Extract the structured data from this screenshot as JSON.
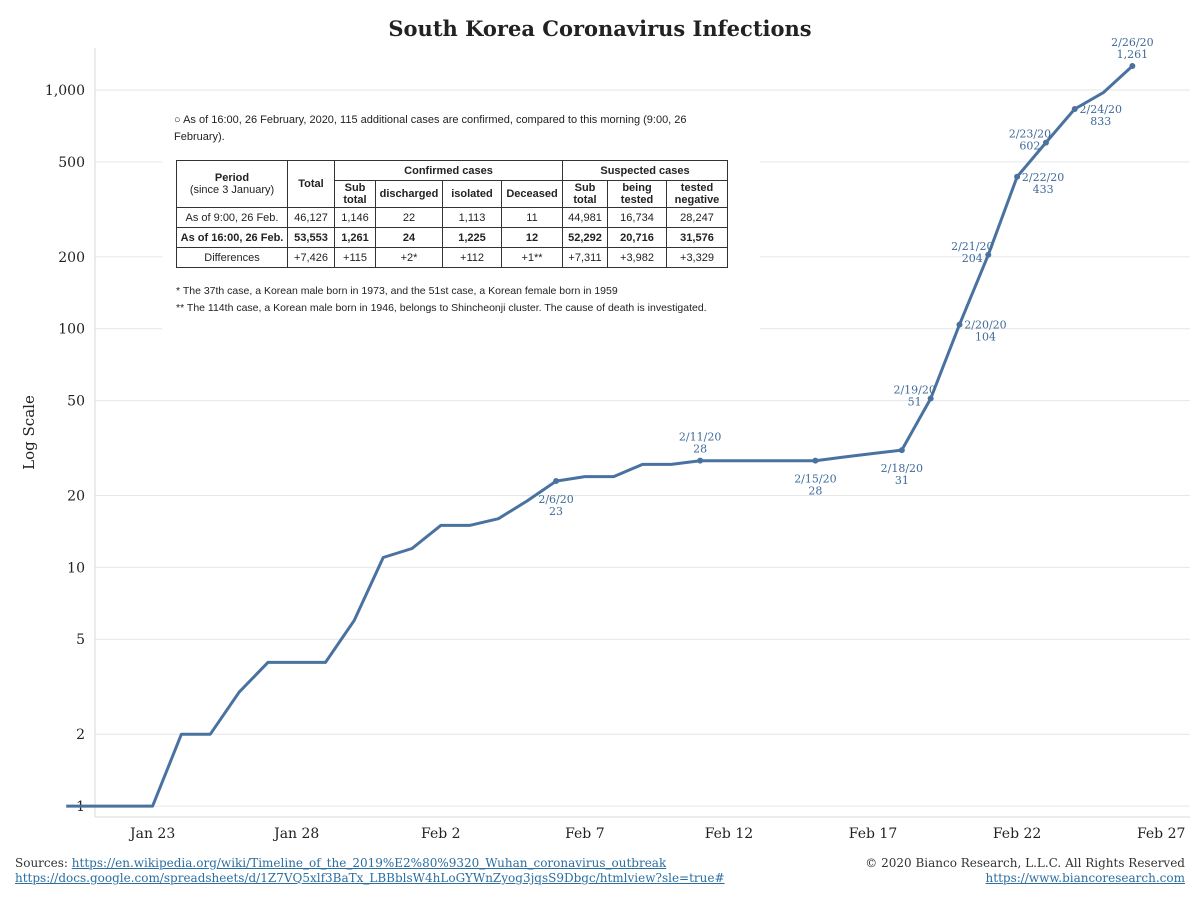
{
  "chart_data": {
    "type": "line",
    "title": "South Korea Coronavirus Infections",
    "ylabel": "Log Scale",
    "xlabel": "",
    "yscale": "log",
    "ylim": [
      0.9,
      1500
    ],
    "y_ticks": [
      1,
      2,
      5,
      10,
      20,
      50,
      100,
      200,
      500,
      1000
    ],
    "y_tick_labels": [
      "1",
      "2",
      "5",
      "10",
      "20",
      "50",
      "100",
      "200",
      "500",
      "1,000"
    ],
    "x_ticks": [
      "2020-01-23",
      "2020-01-28",
      "2020-02-02",
      "2020-02-07",
      "2020-02-12",
      "2020-02-17",
      "2020-02-22",
      "2020-02-27"
    ],
    "x_tick_labels": [
      "Jan 23",
      "Jan 28",
      "Feb 2",
      "Feb 7",
      "Feb 12",
      "Feb 17",
      "Feb 22",
      "Feb 27"
    ],
    "xlim": [
      "2020-01-21",
      "2020-02-28"
    ],
    "grid": "horizontal",
    "color": "#4a72a0",
    "series": [
      {
        "name": "",
        "x": [
          "2020-01-20",
          "2020-01-21",
          "2020-01-22",
          "2020-01-23",
          "2020-01-24",
          "2020-01-25",
          "2020-01-26",
          "2020-01-27",
          "2020-01-28",
          "2020-01-29",
          "2020-01-30",
          "2020-01-31",
          "2020-02-01",
          "2020-02-02",
          "2020-02-03",
          "2020-02-04",
          "2020-02-05",
          "2020-02-06",
          "2020-02-07",
          "2020-02-08",
          "2020-02-09",
          "2020-02-10",
          "2020-02-11",
          "2020-02-12",
          "2020-02-13",
          "2020-02-14",
          "2020-02-15",
          "2020-02-16",
          "2020-02-17",
          "2020-02-18",
          "2020-02-19",
          "2020-02-20",
          "2020-02-21",
          "2020-02-22",
          "2020-02-23",
          "2020-02-24",
          "2020-02-25",
          "2020-02-26"
        ],
        "values": [
          1,
          1,
          1,
          1,
          2,
          2,
          3,
          4,
          4,
          4,
          6,
          11,
          12,
          15,
          15,
          16,
          19,
          23,
          24,
          24,
          27,
          27,
          28,
          28,
          28,
          28,
          28,
          29,
          30,
          31,
          51,
          104,
          204,
          433,
          602,
          833,
          977,
          1261
        ]
      }
    ],
    "annotations": [
      {
        "x": "2020-02-06",
        "date": "2/6/20",
        "value": "23",
        "pos": "below"
      },
      {
        "x": "2020-02-11",
        "date": "2/11/20",
        "value": "28",
        "pos": "above"
      },
      {
        "x": "2020-02-15",
        "date": "2/15/20",
        "value": "28",
        "pos": "below"
      },
      {
        "x": "2020-02-18",
        "date": "2/18/20",
        "value": "31",
        "pos": "below"
      },
      {
        "x": "2020-02-19",
        "date": "2/19/20",
        "value": "51",
        "pos": "left"
      },
      {
        "x": "2020-02-20",
        "date": "2/20/20",
        "value": "104",
        "pos": "right"
      },
      {
        "x": "2020-02-21",
        "date": "2/21/20",
        "value": "204",
        "pos": "left"
      },
      {
        "x": "2020-02-22",
        "date": "2/22/20",
        "value": "433",
        "pos": "right"
      },
      {
        "x": "2020-02-23",
        "date": "2/23/20",
        "value": "602",
        "pos": "left"
      },
      {
        "x": "2020-02-24",
        "date": "2/24/20",
        "value": "833",
        "pos": "right"
      },
      {
        "x": "2020-02-26",
        "date": "2/26/20",
        "value": "1,261",
        "pos": "above"
      }
    ]
  },
  "inset": {
    "header": "○ As of 16:00, 26 February, 2020, 115 additional cases are confirmed, compared to this morning (9:00, 26 February).",
    "col_period": "Period",
    "col_period_sub": "(since 3 January)",
    "col_total": "Total",
    "group_confirmed": "Confirmed cases",
    "group_suspected": "Suspected cases",
    "sub_headers": [
      "Sub total",
      "discharged",
      "isolated",
      "Deceased",
      "Sub total",
      "being tested",
      "tested negative"
    ],
    "rows": [
      {
        "cells": [
          "As of 9:00, 26 Feb.",
          "46,127",
          "1,146",
          "22",
          "1,113",
          "11",
          "44,981",
          "16,734",
          "28,247"
        ],
        "bold": false
      },
      {
        "cells": [
          "As of 16:00, 26 Feb.",
          "53,553",
          "1,261",
          "24",
          "1,225",
          "12",
          "52,292",
          "20,716",
          "31,576"
        ],
        "bold": true
      },
      {
        "cells": [
          "Differences",
          "+7,426",
          "+115",
          "+2*",
          "+112",
          "+1**",
          "+7,311",
          "+3,982",
          "+3,329"
        ],
        "bold": false
      }
    ],
    "note1": "* The 37th case, a Korean male born in 1973, and the 51st case, a Korean female born in 1959",
    "note2": "** The 114th case, a Korean male born in 1946, belongs to Shincheonji cluster. The cause of death is investigated."
  },
  "footer": {
    "sources_label": "Sources:",
    "source_1": "https://en.wikipedia.org/wiki/Timeline_of_the_2019%E2%80%9320_Wuhan_coronavirus_outbreak",
    "source_2": "https://docs.google.com/spreadsheets/d/1Z7VQ5xlf3BaTx_LBBblsW4hLoGYWnZyog3jqsS9Dbgc/htmlview?sle=true#",
    "copyright": "© 2020 Bianco Research, L.L.C. All Rights Reserved",
    "website": "https://www.biancoresearch.com"
  }
}
